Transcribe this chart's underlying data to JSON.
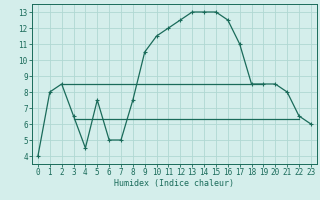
{
  "main_x": [
    0,
    1,
    2,
    3,
    4,
    5,
    6,
    7,
    8,
    9,
    10,
    11,
    12,
    13,
    14,
    15,
    16,
    17,
    18,
    19,
    20,
    21,
    22,
    23
  ],
  "main_y": [
    4.0,
    8.0,
    8.5,
    6.5,
    4.5,
    7.5,
    5.0,
    5.0,
    7.5,
    10.5,
    11.5,
    12.0,
    12.5,
    13.0,
    13.0,
    13.0,
    12.5,
    11.0,
    8.5,
    8.5,
    8.5,
    8.0,
    6.5,
    6.0
  ],
  "hline1_x": [
    2,
    19
  ],
  "hline1_y": [
    8.5,
    8.5
  ],
  "hline2_x": [
    3,
    22
  ],
  "hline2_y": [
    6.3,
    6.3
  ],
  "line_color": "#1a6b5a",
  "bg_color": "#d4eeeb",
  "grid_color": "#b0d8d3",
  "xlabel": "Humidex (Indice chaleur)",
  "xlim": [
    -0.5,
    23.5
  ],
  "ylim": [
    3.5,
    13.5
  ],
  "xticks": [
    0,
    1,
    2,
    3,
    4,
    5,
    6,
    7,
    8,
    9,
    10,
    11,
    12,
    13,
    14,
    15,
    16,
    17,
    18,
    19,
    20,
    21,
    22,
    23
  ],
  "yticks": [
    4,
    5,
    6,
    7,
    8,
    9,
    10,
    11,
    12,
    13
  ],
  "xlabel_fontsize": 6.0,
  "tick_fontsize": 5.5
}
